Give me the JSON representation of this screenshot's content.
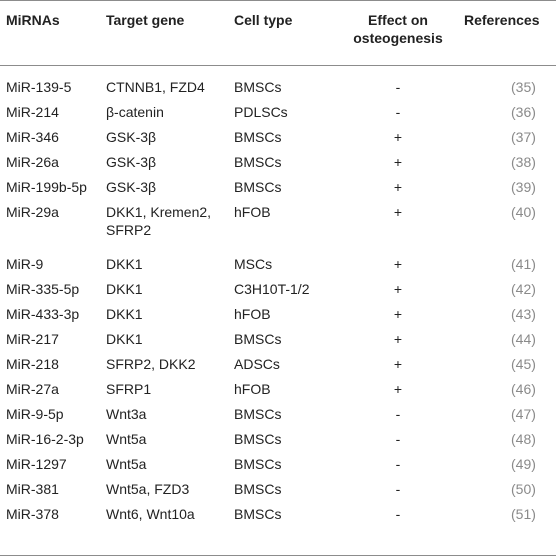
{
  "headers": {
    "mirnas": "MiRNAs",
    "target_gene": "Target gene",
    "cell_type": "Cell type",
    "effect_line1": "Effect on",
    "effect_line2": "osteogenesis",
    "references": "References"
  },
  "rows": [
    {
      "mirna": "MiR-139-5",
      "target": "CTNNB1, FZD4",
      "cell": "BMSCs",
      "effect": "-",
      "ref": "(35)"
    },
    {
      "mirna": "MiR-214",
      "target": "β-catenin",
      "cell": "PDLSCs",
      "effect": "-",
      "ref": "(36)"
    },
    {
      "mirna": "MiR-346",
      "target": "GSK-3β",
      "cell": "BMSCs",
      "effect": "+",
      "ref": "(37)"
    },
    {
      "mirna": "MiR-26a",
      "target": "GSK-3β",
      "cell": "BMSCs",
      "effect": "+",
      "ref": "(38)"
    },
    {
      "mirna": "MiR-199b-5p",
      "target": "GSK-3β",
      "cell": "BMSCs",
      "effect": "+",
      "ref": "(39)"
    },
    {
      "mirna": "MiR-29a",
      "target": "DKK1, Kremen2, SFRP2",
      "cell": "hFOB",
      "effect": "+",
      "ref": "(40)"
    },
    {
      "mirna": "MiR-9",
      "target": "DKK1",
      "cell": "MSCs",
      "effect": "+",
      "ref": "(41)"
    },
    {
      "mirna": "MiR-335-5p",
      "target": "DKK1",
      "cell": "C3H10T-1/2",
      "effect": "+",
      "ref": "(42)"
    },
    {
      "mirna": "MiR-433-3p",
      "target": "DKK1",
      "cell": "hFOB",
      "effect": "+",
      "ref": "(43)"
    },
    {
      "mirna": "MiR-217",
      "target": "DKK1",
      "cell": "BMSCs",
      "effect": "+",
      "ref": "(44)"
    },
    {
      "mirna": "MiR-218",
      "target": "SFRP2, DKK2",
      "cell": "ADSCs",
      "effect": "+",
      "ref": "(45)"
    },
    {
      "mirna": "MiR-27a",
      "target": "SFRP1",
      "cell": "hFOB",
      "effect": "+",
      "ref": "(46)"
    },
    {
      "mirna": "MiR-9-5p",
      "target": "Wnt3a",
      "cell": "BMSCs",
      "effect": "-",
      "ref": "(47)"
    },
    {
      "mirna": "MiR-16-2-3p",
      "target": "Wnt5a",
      "cell": "BMSCs",
      "effect": "-",
      "ref": "(48)"
    },
    {
      "mirna": "MiR-1297",
      "target": "Wnt5a",
      "cell": "BMSCs",
      "effect": "-",
      "ref": "(49)"
    },
    {
      "mirna": "MiR-381",
      "target": "Wnt5a, FZD3",
      "cell": "BMSCs",
      "effect": "-",
      "ref": "(50)"
    },
    {
      "mirna": "MiR-378",
      "target": "Wnt6, Wnt10a",
      "cell": "BMSCs",
      "effect": "-",
      "ref": "(51)"
    }
  ]
}
